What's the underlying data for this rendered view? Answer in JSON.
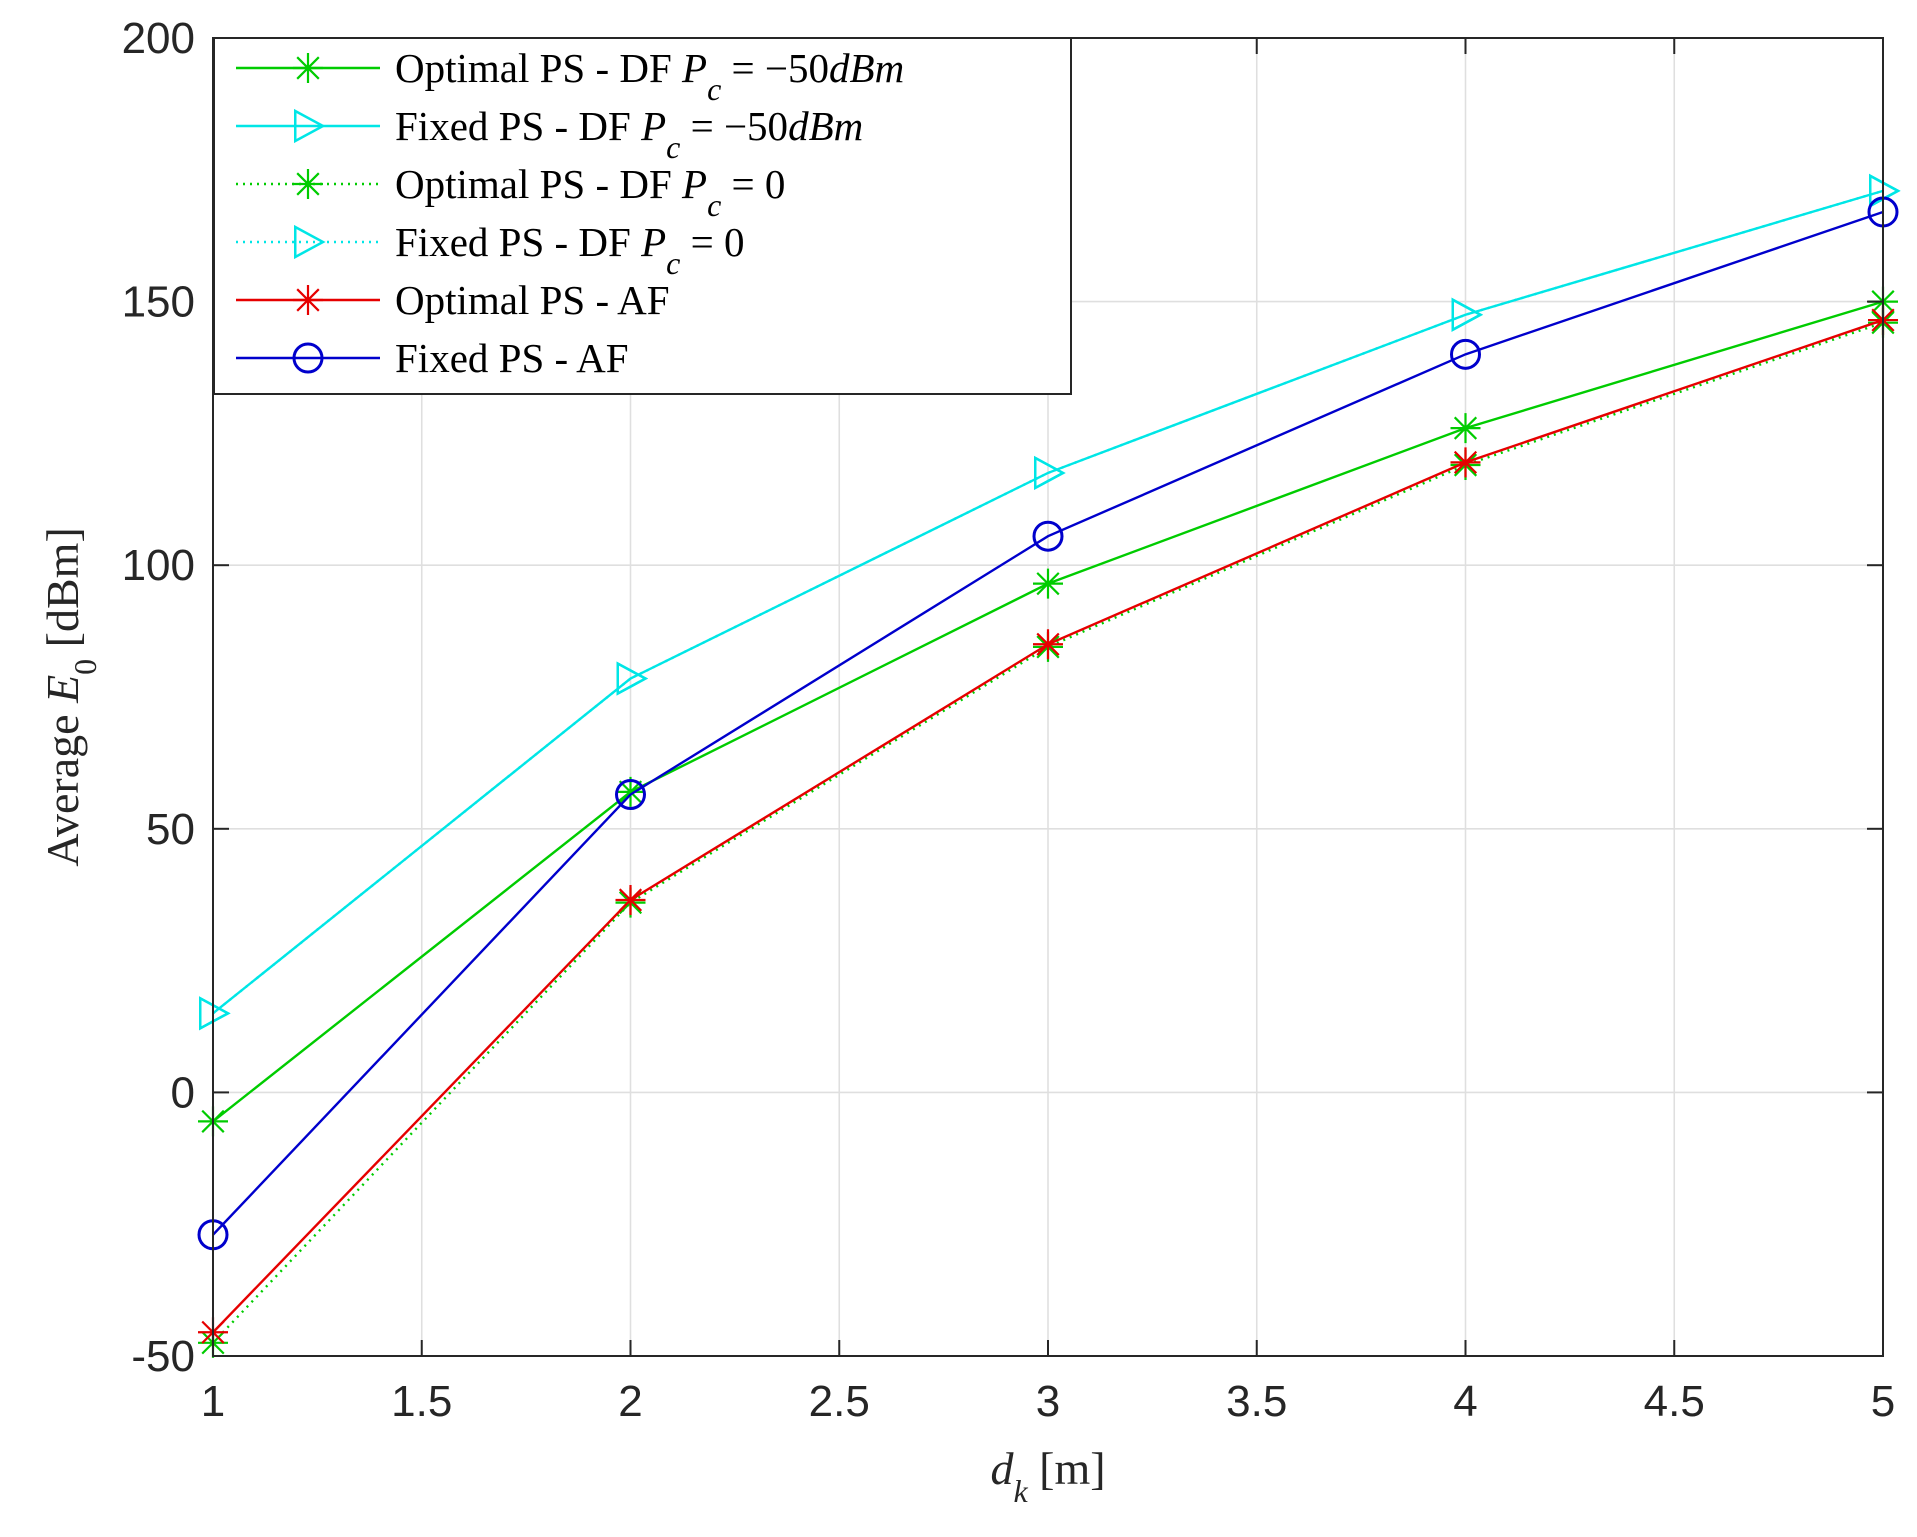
{
  "chart_data": {
    "type": "line",
    "xlabel": "d_k [m]",
    "ylabel": "Average E_0 [dBm]",
    "xlim": [
      1,
      5
    ],
    "ylim": [
      -50,
      200
    ],
    "xticks": [
      "1",
      "1.5",
      "2",
      "2.5",
      "3",
      "3.5",
      "4",
      "4.5",
      "5"
    ],
    "yticks": [
      "-50",
      "0",
      "50",
      "100",
      "150",
      "200"
    ],
    "grid": true,
    "legend_position": "top-left",
    "x": [
      1,
      2,
      3,
      4,
      5
    ],
    "series": [
      {
        "name": "Optimal PS - DF P_c = -50dBm",
        "values": [
          -5.5,
          57,
          96.5,
          126,
          150
        ],
        "color": "#00cc00",
        "line_style": "solid",
        "marker": "star"
      },
      {
        "name": "Fixed PS - DF P_c = -50dBm",
        "values": [
          15,
          78.5,
          117.5,
          147.5,
          171
        ],
        "color": "#00e6e6",
        "line_style": "solid",
        "marker": "triangle-right"
      },
      {
        "name": "Optimal PS - DF P_c = 0",
        "values": [
          -47.5,
          36,
          84.5,
          119,
          146
        ],
        "color": "#00cc00",
        "line_style": "dotted",
        "marker": "star"
      },
      {
        "name": "Fixed PS - DF P_c = 0",
        "values": [
          15,
          78.5,
          117.5,
          147.5,
          171
        ],
        "color": "#00e6e6",
        "line_style": "dotted",
        "marker": "triangle-right"
      },
      {
        "name": "Optimal PS - AF",
        "values": [
          -45.5,
          36.5,
          85,
          119.5,
          146.5
        ],
        "color": "#e60000",
        "line_style": "solid",
        "marker": "star"
      },
      {
        "name": "Fixed PS - AF",
        "values": [
          -27,
          56.5,
          105.5,
          140,
          167
        ],
        "color": "#0000cc",
        "line_style": "solid",
        "marker": "circle"
      }
    ]
  }
}
